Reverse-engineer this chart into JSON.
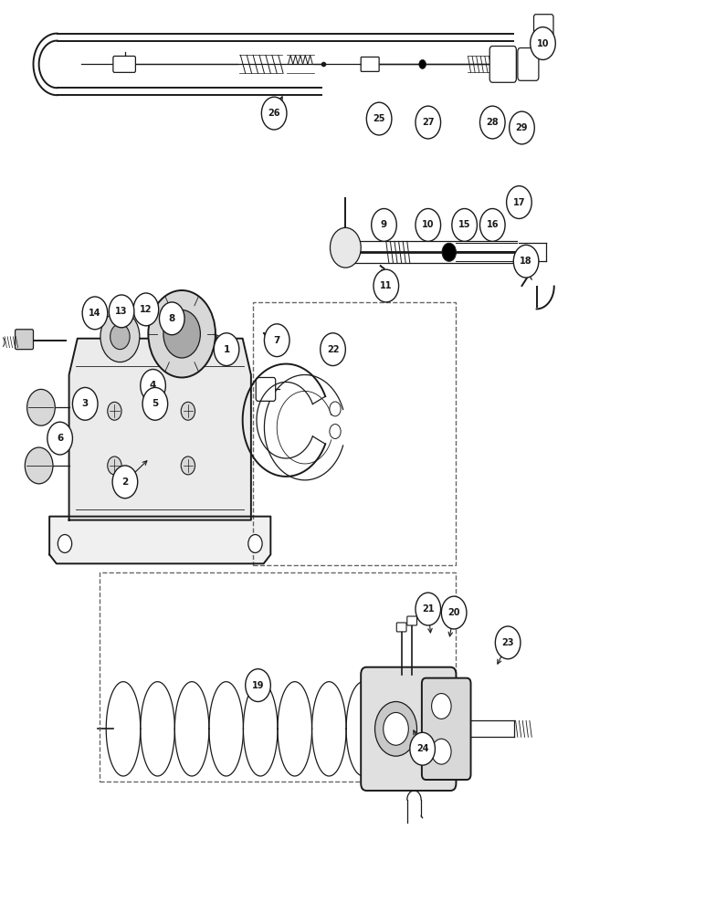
{
  "bg": "#ffffff",
  "lc": "#1a1a1a",
  "fig_w": 7.72,
  "fig_h": 10.0,
  "dpi": 100,
  "label_r": 0.018,
  "labels": {
    "1": [
      0.32,
      0.618,
      0.3,
      0.638
    ],
    "2": [
      0.175,
      0.472,
      0.21,
      0.498
    ],
    "3": [
      0.118,
      0.558,
      0.132,
      0.568
    ],
    "4": [
      0.215,
      0.578,
      0.21,
      0.582
    ],
    "5": [
      0.218,
      0.558,
      0.215,
      0.562
    ],
    "6": [
      0.082,
      0.52,
      0.098,
      0.53
    ],
    "7": [
      0.392,
      0.628,
      0.368,
      0.638
    ],
    "8": [
      0.242,
      0.652,
      0.235,
      0.648
    ],
    "9": [
      0.545,
      0.755,
      0.535,
      0.738
    ],
    "10": [
      0.608,
      0.755,
      0.6,
      0.742
    ],
    "11": [
      0.548,
      0.688,
      0.548,
      0.705
    ],
    "12": [
      0.205,
      0.662,
      0.205,
      0.658
    ],
    "13": [
      0.17,
      0.66,
      0.175,
      0.658
    ],
    "14": [
      0.132,
      0.658,
      0.148,
      0.658
    ],
    "15": [
      0.66,
      0.755,
      0.652,
      0.742
    ],
    "16": [
      0.7,
      0.755,
      0.692,
      0.742
    ],
    "17": [
      0.738,
      0.78,
      0.738,
      0.762
    ],
    "18": [
      0.748,
      0.715,
      0.742,
      0.722
    ],
    "19": [
      0.365,
      0.248,
      0.368,
      0.268
    ],
    "20": [
      0.645,
      0.328,
      0.638,
      0.298
    ],
    "21": [
      0.608,
      0.332,
      0.612,
      0.302
    ],
    "22": [
      0.472,
      0.618,
      0.455,
      0.608
    ],
    "23": [
      0.722,
      0.295,
      0.705,
      0.268
    ],
    "24": [
      0.6,
      0.178,
      0.585,
      0.202
    ],
    "25": [
      0.538,
      0.872,
      0.532,
      0.892
    ],
    "26": [
      0.388,
      0.878,
      0.402,
      0.9
    ],
    "27": [
      0.608,
      0.868,
      0.608,
      0.888
    ],
    "28": [
      0.7,
      0.868,
      0.7,
      0.888
    ],
    "29": [
      0.742,
      0.862,
      0.745,
      0.882
    ],
    "10b": [
      0.772,
      0.955,
      0.76,
      0.942
    ]
  }
}
